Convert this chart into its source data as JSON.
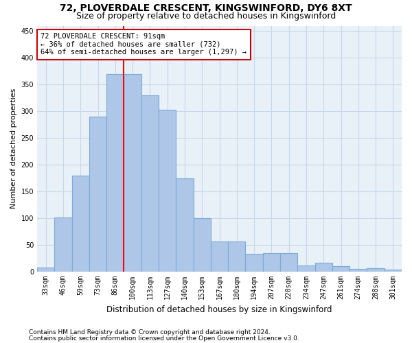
{
  "title1": "72, PLOVERDALE CRESCENT, KINGSWINFORD, DY6 8XT",
  "title2": "Size of property relative to detached houses in Kingswinford",
  "xlabel": "Distribution of detached houses by size in Kingswinford",
  "ylabel": "Number of detached properties",
  "categories": [
    "33sqm",
    "46sqm",
    "59sqm",
    "73sqm",
    "86sqm",
    "100sqm",
    "113sqm",
    "127sqm",
    "140sqm",
    "153sqm",
    "167sqm",
    "180sqm",
    "194sqm",
    "207sqm",
    "220sqm",
    "234sqm",
    "247sqm",
    "261sqm",
    "274sqm",
    "288sqm",
    "301sqm"
  ],
  "values": [
    8,
    101,
    180,
    290,
    370,
    370,
    330,
    303,
    175,
    100,
    57,
    57,
    33,
    35,
    35,
    12,
    17,
    10,
    5,
    6,
    4
  ],
  "bar_color": "#aec6e8",
  "bar_edge_color": "#7aacd4",
  "bar_edge_width": 0.8,
  "red_line_x": 4.5,
  "annotation_line1": "72 PLOVERDALE CRESCENT: 91sqm",
  "annotation_line2": "← 36% of detached houses are smaller (732)",
  "annotation_line3": "64% of semi-detached houses are larger (1,297) →",
  "annotation_box_color": "#ffffff",
  "annotation_box_edge": "#cc0000",
  "ylim": [
    0,
    460
  ],
  "yticks": [
    0,
    50,
    100,
    150,
    200,
    250,
    300,
    350,
    400,
    450
  ],
  "footer1": "Contains HM Land Registry data © Crown copyright and database right 2024.",
  "footer2": "Contains public sector information licensed under the Open Government Licence v3.0.",
  "bg_color": "#ffffff",
  "plot_bg_color": "#e8f0f8",
  "grid_color": "#c8d8e8",
  "title1_fontsize": 10,
  "title2_fontsize": 9,
  "xlabel_fontsize": 8.5,
  "ylabel_fontsize": 8,
  "tick_fontsize": 7,
  "annot_fontsize": 7.5,
  "footer_fontsize": 6.5
}
